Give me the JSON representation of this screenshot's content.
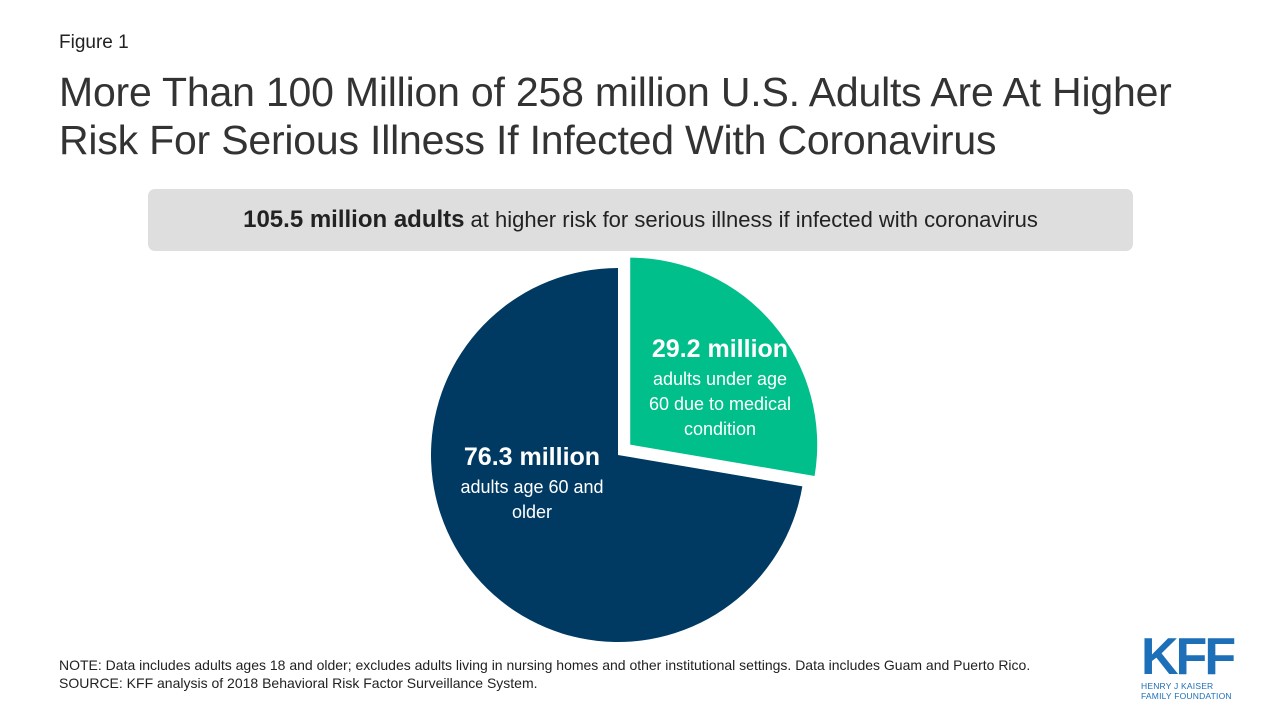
{
  "figure_label": "Figure 1",
  "title": "More Than 100 Million of 258 million U.S. Adults Are At Higher Risk For Serious Illness If Infected With Coronavirus",
  "banner": {
    "bold": "105.5 million adults",
    "rest": "at higher risk for serious illness if infected with coronavirus"
  },
  "chart_data": {
    "type": "pie",
    "slices": [
      {
        "value": 29.2,
        "value_label": "29.2 million",
        "label_lines": [
          "adults under age",
          "60 due to medical",
          "condition"
        ],
        "color": "#00bf8a",
        "exploded": true
      },
      {
        "value": 76.3,
        "value_label": "76.3 million",
        "label_lines": [
          "adults age 60 and",
          "older"
        ],
        "color": "#003a63",
        "exploded": false
      }
    ]
  },
  "notes": {
    "note": "NOTE: Data includes adults ages 18 and older; excludes adults living in nursing homes and other institutional settings. Data includes Guam and Puerto Rico.",
    "source": "SOURCE: KFF analysis of 2018 Behavioral Risk Factor Surveillance System."
  },
  "logo": {
    "mark": "KFF",
    "line1": "HENRY J KAISER",
    "line2": "FAMILY FOUNDATION",
    "color": "#1d6fb8"
  }
}
